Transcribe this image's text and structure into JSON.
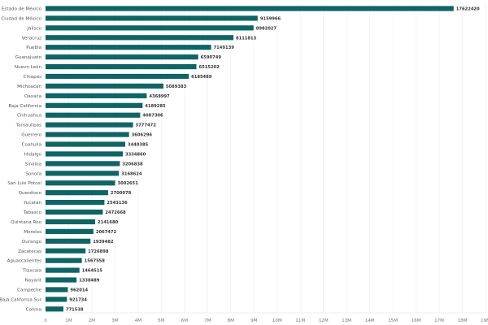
{
  "chart_data": {
    "type": "bar",
    "orientation": "horizontal",
    "categories": [
      "Estado de México",
      "Ciudad de México",
      "Jalisco",
      "Veracruz",
      "Puebla",
      "Guanajuato",
      "Nuevo León",
      "Chiapas",
      "Michoacán",
      "Oaxaca",
      "Baja California",
      "Chihuahua",
      "Tamaulipas",
      "Guerrero",
      "Coahulia",
      "Hidalgo",
      "Sinaloa",
      "Sonora",
      "San Luis Potosí",
      "Querétaro",
      "Yucatán",
      "Tabasco",
      "Quintana Roo",
      "Morelos",
      "Durango",
      "Zacatecas",
      "Aguascalientes",
      "Tlaxcala",
      "Nayarit",
      "Campeche",
      "Baja California Sur",
      "Colima"
    ],
    "values": [
      17622420,
      9159966,
      8982027,
      8111813,
      7149139,
      6590749,
      6515202,
      6185489,
      5089383,
      4368997,
      4189285,
      4087306,
      3777472,
      3606296,
      3440385,
      3334860,
      3206838,
      3168624,
      3002651,
      2700978,
      2543136,
      2472668,
      2141680,
      2067472,
      1939482,
      1726898,
      1567558,
      1464515,
      1338489,
      962014,
      921734,
      771538
    ],
    "value_labels": [
      "17622420",
      "9159966",
      "8982027",
      "8111813",
      "7149139",
      "6590749",
      "6515202",
      "6185489",
      "5089383",
      "4368997",
      "4189285",
      "4087306",
      "3777472",
      "3606296",
      "3440385",
      "3334860",
      "3206838",
      "3168624",
      "3002651",
      "2700978",
      "2543136",
      "2472668",
      "2141680",
      "2067472",
      "1939482",
      "1726898",
      "1567558",
      "1464515",
      "1338489",
      "962014",
      "921734",
      "771538"
    ],
    "xlim": [
      0,
      19000000
    ],
    "x_ticks": [
      "0",
      "1M",
      "2M",
      "3M",
      "4M",
      "5M",
      "6M",
      "7M",
      "8M",
      "9M",
      "10M",
      "11M",
      "12M",
      "13M",
      "14M",
      "15M",
      "16M",
      "17M",
      "18M",
      "19M"
    ],
    "grid": "vertical",
    "bar_color": "#0f6466",
    "title": "",
    "xlabel": "",
    "ylabel": ""
  }
}
